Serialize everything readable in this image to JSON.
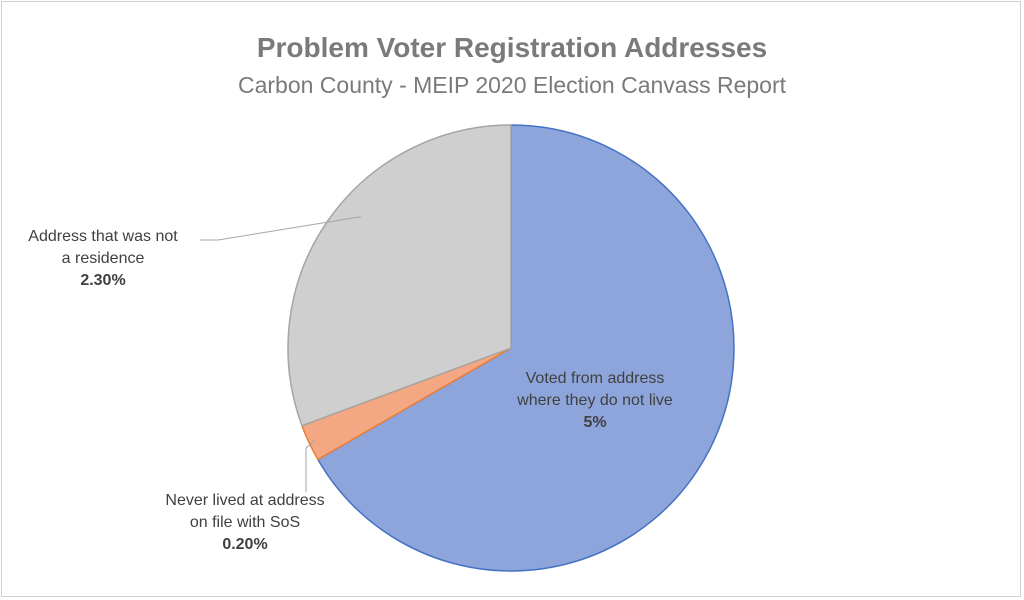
{
  "chart_data": {
    "type": "pie",
    "title": "Problem Voter Registration Addresses",
    "subtitle": "Carbon County - MEIP 2020 Election Canvass Report",
    "slices": [
      {
        "label": "Voted from address where they do not live",
        "value": 5,
        "display": "5%",
        "color": "#8ea5db",
        "stroke": "#4472c4",
        "line_label": [
          "Voted from address",
          "where they do not live"
        ]
      },
      {
        "label": "Never lived at address on file with SoS",
        "value": 0.2,
        "display": "0.20%",
        "color": "#f4a783",
        "stroke": "#ed7d31",
        "line_label": [
          "Never lived at address",
          "on file with SoS"
        ]
      },
      {
        "label": "Address that was not a residence",
        "value": 2.3,
        "display": "2.30%",
        "color": "#cfcfcf",
        "stroke": "#a5a5a5",
        "line_label": [
          "Address that was not",
          "a residence"
        ]
      }
    ],
    "legend": "none"
  }
}
